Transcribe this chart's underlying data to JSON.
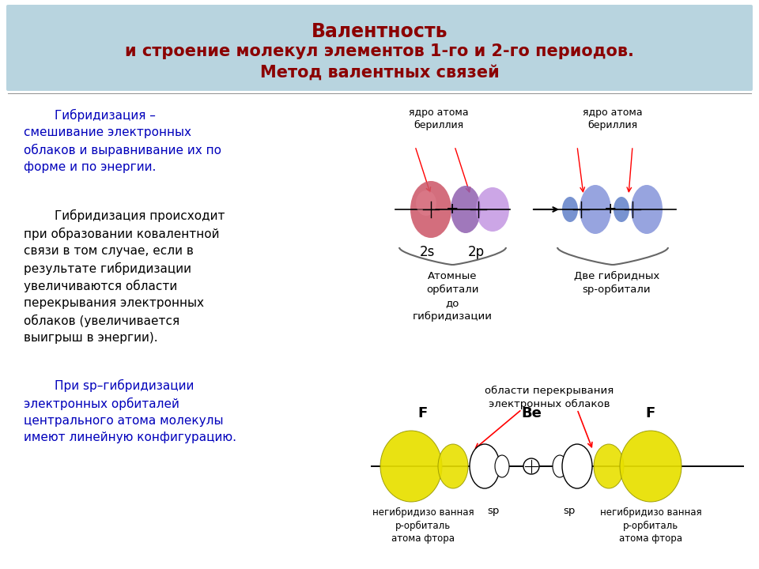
{
  "title_line1": "Валентность",
  "title_line2": "и строение молекул элементов 1-го и 2-го периодов.",
  "title_line3": "Метод валентных связей",
  "title_bg": "#b8d4df",
  "title_color": "#8b0000",
  "text1": "        Гибридизация –\nсмешивание электронных\nоблаков и выравнивание их по\nформе и по энергии.",
  "text1_color": "#0000bb",
  "text2": "        Гибридизация происходит\nпри образовании ковалентной\nсвязи в том случае, если в\nрезультате гибридизации\nувеличиваются области\nперекрывания электронных\nоблаков (увеличивается\nвыигрыш в энергии).",
  "text2_color": "#000000",
  "text3": "        При sp–гибридизации\nэлектронных орбиталей\nцентрального атома молекулы\nимеют линейную конфигурацию.",
  "text3_color": "#0000bb"
}
